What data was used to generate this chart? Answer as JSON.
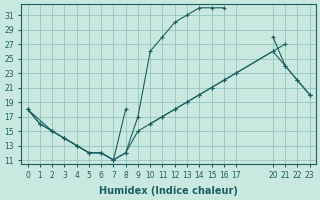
{
  "xlabel": "Humidex (Indice chaleur)",
  "bg_color": "#c8e8e0",
  "grid_color": "#8bbdb5",
  "line_color": "#1a6060",
  "xlim": [
    -0.5,
    23.5
  ],
  "ylim": [
    10.5,
    32.5
  ],
  "xticks": [
    0,
    1,
    2,
    3,
    4,
    5,
    6,
    7,
    8,
    9,
    10,
    11,
    12,
    13,
    14,
    15,
    16,
    17,
    20,
    21,
    22,
    23
  ],
  "yticks": [
    11,
    13,
    15,
    17,
    19,
    21,
    23,
    25,
    27,
    29,
    31
  ],
  "line1_x": [
    0,
    1,
    2,
    3,
    4,
    5,
    6,
    7,
    8,
    9,
    10,
    11,
    12,
    13,
    14,
    15,
    16,
    17,
    20,
    21,
    22,
    23
  ],
  "line1_y": [
    18,
    16,
    15,
    14,
    13,
    12,
    12,
    11,
    12,
    17,
    26,
    28,
    30,
    31,
    32,
    32,
    32,
    null,
    28,
    24,
    22,
    20
  ],
  "line2_x": [
    0,
    2,
    3,
    4,
    5,
    6,
    7,
    8,
    9,
    10,
    11,
    12,
    13,
    14,
    15,
    16,
    17,
    20,
    21,
    22,
    23
  ],
  "line2_y": [
    18,
    15,
    14,
    13,
    12,
    12,
    11,
    12,
    15,
    16,
    17,
    18,
    19,
    20,
    21,
    22,
    23,
    26,
    24,
    22,
    20
  ],
  "line3_x": [
    0,
    1,
    2,
    3,
    4,
    5,
    6,
    7,
    8,
    9,
    10,
    11,
    12,
    13,
    14,
    15,
    16,
    17,
    20,
    21,
    22,
    23
  ],
  "line3_y": [
    18,
    16,
    15,
    14,
    13,
    12,
    12,
    11,
    18,
    null,
    16,
    17,
    18,
    19,
    20,
    21,
    22,
    23,
    26,
    27,
    null,
    20
  ]
}
